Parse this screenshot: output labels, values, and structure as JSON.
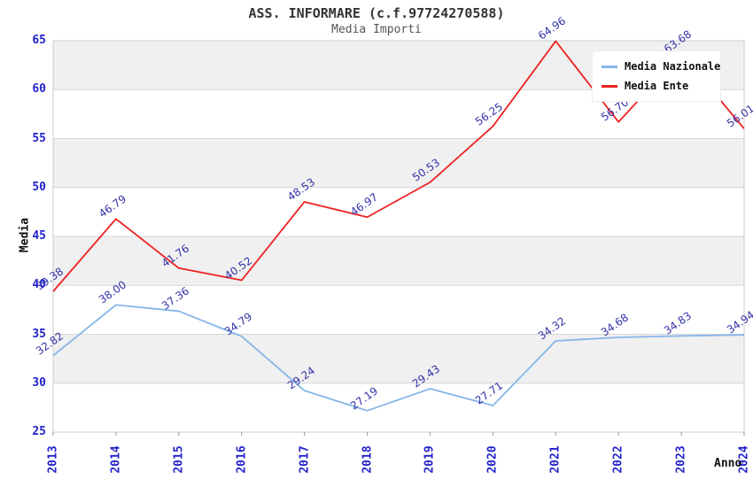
{
  "chart_data": {
    "type": "line",
    "title": "ASS. INFORMARE (c.f.97724270588)",
    "subtitle": "Media Importi",
    "xlabel": "Anno",
    "ylabel": "Media",
    "ylim": [
      25,
      65
    ],
    "ytick_step": 5,
    "grid": "horizontal",
    "plot_band_colors": [
      "#f0f0f0",
      "#ffffff"
    ],
    "gridline_color": "#d6d6d6",
    "frame_color": "#cccccc",
    "tick_label_color": "#2222cc",
    "data_label_color": "#3333aa",
    "legend_position": "top-right",
    "categories": [
      "2013",
      "2014",
      "2015",
      "2016",
      "2017",
      "2018",
      "2019",
      "2020",
      "2021",
      "2022",
      "2023",
      "2024"
    ],
    "series": [
      {
        "name": "Media Nazionale",
        "color": "#85b6e7",
        "values": [
          32.82,
          38.0,
          37.36,
          34.79,
          29.24,
          27.19,
          29.43,
          27.71,
          34.32,
          34.68,
          34.83,
          34.94
        ]
      },
      {
        "name": "Media Ente",
        "color": "#ee2222",
        "values": [
          39.38,
          46.79,
          41.76,
          40.52,
          48.53,
          46.97,
          50.53,
          56.25,
          64.96,
          56.7,
          63.68,
          56.01
        ]
      }
    ]
  }
}
